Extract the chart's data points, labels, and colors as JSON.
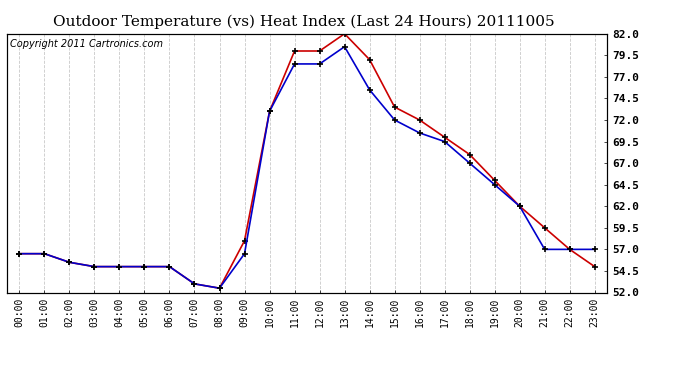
{
  "title": "Outdoor Temperature (vs) Heat Index (Last 24 Hours) 20111005",
  "copyright_text": "Copyright 2011 Cartronics.com",
  "hours": [
    "00:00",
    "01:00",
    "02:00",
    "03:00",
    "04:00",
    "05:00",
    "06:00",
    "07:00",
    "08:00",
    "09:00",
    "10:00",
    "11:00",
    "12:00",
    "13:00",
    "14:00",
    "15:00",
    "16:00",
    "17:00",
    "18:00",
    "19:00",
    "20:00",
    "21:00",
    "22:00",
    "23:00"
  ],
  "temp": [
    56.5,
    56.5,
    55.5,
    55.0,
    55.0,
    55.0,
    55.0,
    53.0,
    52.5,
    58.0,
    73.0,
    80.0,
    80.0,
    82.0,
    79.0,
    73.5,
    72.0,
    70.0,
    68.0,
    65.0,
    62.0,
    59.5,
    57.0,
    55.0
  ],
  "heat_index": [
    56.5,
    56.5,
    55.5,
    55.0,
    55.0,
    55.0,
    55.0,
    53.0,
    52.5,
    56.5,
    73.0,
    78.5,
    78.5,
    80.5,
    75.5,
    72.0,
    70.5,
    69.5,
    67.0,
    64.5,
    62.0,
    57.0,
    57.0,
    57.0
  ],
  "temp_color": "#cc0000",
  "heat_index_color": "#0000cc",
  "ylim": [
    52.0,
    82.0
  ],
  "yticks": [
    52.0,
    54.5,
    57.0,
    59.5,
    62.0,
    64.5,
    67.0,
    69.5,
    72.0,
    74.5,
    77.0,
    79.5,
    82.0
  ],
  "background_color": "#ffffff",
  "plot_bg_color": "#ffffff",
  "grid_color": "#bbbbbb",
  "title_fontsize": 11,
  "copyright_fontsize": 7
}
